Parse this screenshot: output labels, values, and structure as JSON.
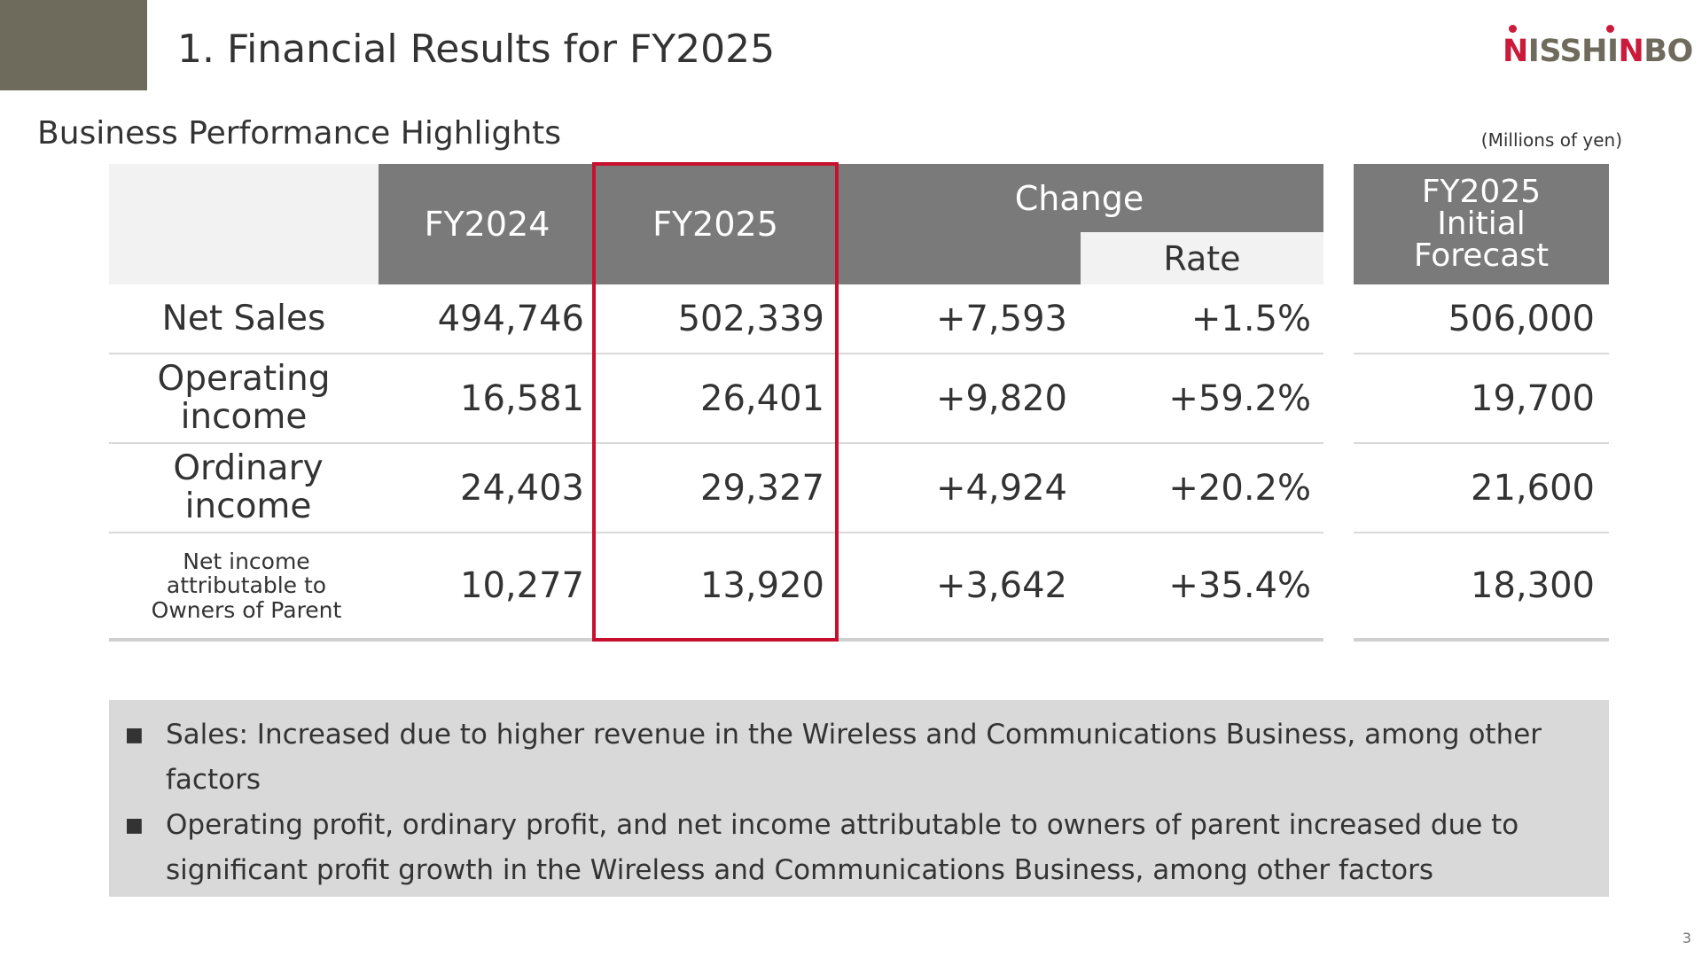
{
  "slide": {
    "title": "1. Financial Results for FY2025",
    "subtitle": "Business Performance Highlights",
    "unit_note": "(Millions of yen)",
    "page_number": "3"
  },
  "logo": {
    "text_red": "NISSHINBO",
    "red_letter_1": "N",
    "gray_1": "ISSHI",
    "red_letter_2": "N",
    "gray_2": "BO"
  },
  "colors": {
    "header_gray": "#7a7a7a",
    "corner_block": "#6e6a5c",
    "highlight_red": "#c8102e",
    "logo_red": "#cc1a3a",
    "notes_bg": "#d9d9d9"
  },
  "table": {
    "headers": {
      "fy2024": "FY2024",
      "fy2025": "FY2025",
      "change": "Change",
      "rate": "Rate",
      "forecast": "FY2025\nInitial\nForecast"
    },
    "rows": [
      {
        "label": "Net Sales",
        "fy2024": "494,746",
        "fy2025": "502,339",
        "change": "+7,593",
        "rate": "+1.5%",
        "forecast": "506,000"
      },
      {
        "label": "Operating\nincome",
        "fy2024": "16,581",
        "fy2025": "26,401",
        "change": "+9,820",
        "rate": "+59.2%",
        "forecast": "19,700"
      },
      {
        "label": "Ordinary\nincome",
        "fy2024": "24,403",
        "fy2025": "29,327",
        "change": "+4,924",
        "rate": "+20.2%",
        "forecast": "21,600"
      },
      {
        "label": "Net income\nattributable to\nOwners of Parent",
        "fy2024": "10,277",
        "fy2025": "13,920",
        "change": "+3,642",
        "rate": "+35.4%",
        "forecast": "18,300"
      }
    ]
  },
  "notes": {
    "bullet": "■",
    "items": [
      " Sales: Increased due to higher revenue in the Wireless and Communications Business, among other factors",
      " Operating profit, ordinary profit, and net income attributable to owners of parent increased due to significant profit growth in the Wireless and Communications Business, among other factors"
    ]
  }
}
